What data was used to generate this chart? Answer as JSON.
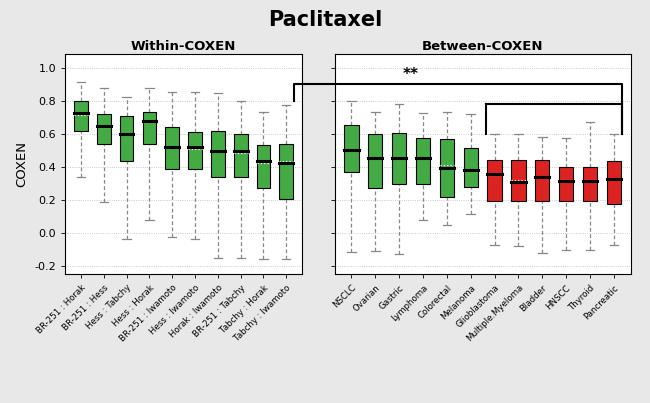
{
  "title": "Paclitaxel",
  "title_fontsize": 15,
  "title_fontweight": "bold",
  "ylabel": "COXEN",
  "left_panel_title": "Within-COXEN",
  "right_panel_title": "Between-COXEN",
  "background_color": "#e8e8e8",
  "panel_bg": "#ffffff",
  "green_color": "#44aa44",
  "red_color": "#dd2222",
  "grid_color": "#bbbbbb",
  "whisker_color": "#888888",
  "left_labels": [
    "BR-251 : Horak",
    "BR-251 : Hess",
    "Hess : Tabchy",
    "Hess : Horak",
    "BR-251 : Iwamoto",
    "Hess : Iwamoto",
    "Horak : Iwamoto",
    "BR-251 : Tabchy",
    "Tabchy : Horak",
    "Tabchy : Iwamoto"
  ],
  "left_boxes": [
    {
      "q1": 0.615,
      "med": 0.725,
      "q3": 0.8,
      "whislo": 0.34,
      "whishi": 0.91,
      "mean": 0.715
    },
    {
      "q1": 0.535,
      "med": 0.645,
      "q3": 0.72,
      "whislo": 0.185,
      "whishi": 0.875,
      "mean": 0.64
    },
    {
      "q1": 0.435,
      "med": 0.6,
      "q3": 0.71,
      "whislo": -0.04,
      "whishi": 0.825,
      "mean": 0.595
    },
    {
      "q1": 0.535,
      "med": 0.675,
      "q3": 0.73,
      "whislo": 0.075,
      "whishi": 0.875,
      "mean": 0.668
    },
    {
      "q1": 0.385,
      "med": 0.52,
      "q3": 0.64,
      "whislo": -0.025,
      "whishi": 0.85,
      "mean": 0.518
    },
    {
      "q1": 0.385,
      "med": 0.52,
      "q3": 0.61,
      "whislo": -0.035,
      "whishi": 0.85,
      "mean": 0.51
    },
    {
      "q1": 0.34,
      "med": 0.495,
      "q3": 0.615,
      "whislo": -0.155,
      "whishi": 0.845,
      "mean": 0.495
    },
    {
      "q1": 0.34,
      "med": 0.495,
      "q3": 0.595,
      "whislo": -0.155,
      "whishi": 0.8,
      "mean": 0.48
    },
    {
      "q1": 0.27,
      "med": 0.435,
      "q3": 0.53,
      "whislo": -0.16,
      "whishi": 0.73,
      "mean": 0.425
    },
    {
      "q1": 0.205,
      "med": 0.425,
      "q3": 0.54,
      "whislo": -0.16,
      "whishi": 0.775,
      "mean": 0.435
    }
  ],
  "right_labels": [
    "NSCLC",
    "Ovarian",
    "Gastric",
    "Lymphoma",
    "Colorectal",
    "Melanoma",
    "Glioblastoma",
    "Multiple.Myeloma",
    "Bladder",
    "HNSCC",
    "Thyroid",
    "Pancreatic"
  ],
  "right_colors": [
    "green",
    "green",
    "green",
    "green",
    "green",
    "green",
    "red",
    "red",
    "red",
    "red",
    "red",
    "red"
  ],
  "right_boxes": [
    {
      "q1": 0.365,
      "med": 0.5,
      "q3": 0.65,
      "whislo": -0.115,
      "whishi": 0.8,
      "mean": 0.5
    },
    {
      "q1": 0.27,
      "med": 0.45,
      "q3": 0.6,
      "whislo": -0.11,
      "whishi": 0.73,
      "mean": 0.455
    },
    {
      "q1": 0.295,
      "med": 0.45,
      "q3": 0.605,
      "whislo": -0.13,
      "whishi": 0.78,
      "mean": 0.455
    },
    {
      "q1": 0.295,
      "med": 0.45,
      "q3": 0.575,
      "whislo": 0.075,
      "whishi": 0.725,
      "mean": 0.455
    },
    {
      "q1": 0.215,
      "med": 0.395,
      "q3": 0.57,
      "whislo": 0.045,
      "whishi": 0.73,
      "mean": 0.41
    },
    {
      "q1": 0.275,
      "med": 0.38,
      "q3": 0.515,
      "whislo": 0.115,
      "whishi": 0.72,
      "mean": 0.378
    },
    {
      "q1": 0.195,
      "med": 0.355,
      "q3": 0.44,
      "whislo": -0.075,
      "whishi": 0.6,
      "mean": 0.348
    },
    {
      "q1": 0.195,
      "med": 0.305,
      "q3": 0.44,
      "whislo": -0.08,
      "whishi": 0.595,
      "mean": 0.318
    },
    {
      "q1": 0.195,
      "med": 0.335,
      "q3": 0.44,
      "whislo": -0.125,
      "whishi": 0.58,
      "mean": 0.335
    },
    {
      "q1": 0.195,
      "med": 0.315,
      "q3": 0.4,
      "whislo": -0.105,
      "whishi": 0.575,
      "mean": 0.318
    },
    {
      "q1": 0.195,
      "med": 0.315,
      "q3": 0.4,
      "whislo": -0.105,
      "whishi": 0.67,
      "mean": 0.318
    },
    {
      "q1": 0.175,
      "med": 0.325,
      "q3": 0.435,
      "whislo": -0.075,
      "whishi": 0.595,
      "mean": 0.328
    }
  ],
  "ylim": [
    -0.25,
    1.08
  ],
  "yticks": [
    0.0,
    0.2,
    0.4,
    0.6,
    0.8,
    1.0
  ],
  "yticklabels": [
    "0.0",
    "0.2",
    "0.4",
    "0.6",
    "0.8",
    "1.0"
  ],
  "ytick_extra": -0.2,
  "ytick_extra_label": "-0.2"
}
